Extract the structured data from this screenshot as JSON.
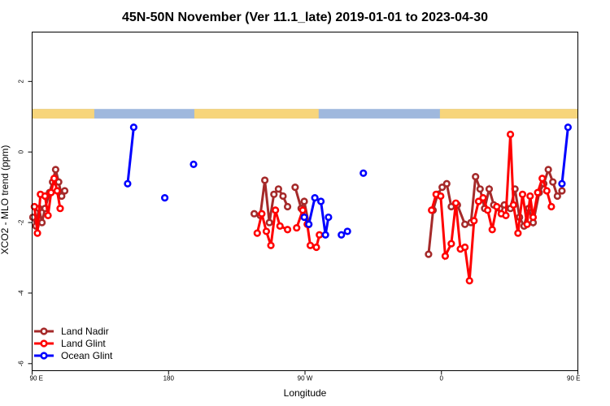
{
  "chart_data": {
    "type": "line",
    "title": "45N-50N November (Ver 11.1_late)   2019-01-01 to 2023-04-30",
    "xlabel": "Longitude",
    "ylabel": "XCO2 - MLO trend (ppm)",
    "xlim": [
      90,
      450
    ],
    "ylim": [
      -6.2,
      3.4
    ],
    "x_ticks": [
      {
        "value": 90,
        "label": "90 E"
      },
      {
        "value": 180,
        "label": "180"
      },
      {
        "value": 270,
        "label": "90 W"
      },
      {
        "value": 360,
        "label": "0"
      },
      {
        "value": 450,
        "label": "90 E"
      },
      {
        "value": 540,
        "label": "180"
      }
    ],
    "y_ticks": [
      {
        "value": 2,
        "label": "2"
      },
      {
        "value": 0,
        "label": "0"
      },
      {
        "value": -2,
        "label": "-2"
      },
      {
        "value": -4,
        "label": "-4"
      },
      {
        "value": -6,
        "label": "-6"
      }
    ],
    "grid": false,
    "legend_position": "bottom-left",
    "land_band": {
      "y_range": [
        0.95,
        1.22
      ],
      "ocean_color": "#9fb8dd",
      "land_color": "#f7d57b",
      "land_segments": [
        [
          90,
          131
        ],
        [
          197,
          279
        ],
        [
          359,
          486
        ],
        [
          531,
          547
        ],
        [
          577,
          577
        ]
      ]
    },
    "series": [
      {
        "name": "Land Nadir",
        "color": "#a52a2a",
        "segments": [
          [
            [
              90.5,
              -1.85
            ],
            [
              92.5,
              -2.1
            ],
            [
              94.5,
              -1.6
            ],
            [
              96.5,
              -2.0
            ],
            [
              98.5,
              -1.6
            ],
            [
              101.5,
              -1.15
            ],
            [
              103.5,
              -0.85
            ],
            [
              105.5,
              -0.5
            ],
            [
              107.5,
              -0.85
            ],
            [
              109.5,
              -1.25
            ],
            [
              111.5,
              -1.1
            ]
          ],
          [
            [
              236.5,
              -1.75
            ],
            [
              240.5,
              -1.8
            ],
            [
              243.5,
              -0.8
            ],
            [
              246.5,
              -2.0
            ],
            [
              249.5,
              -1.2
            ],
            [
              252.5,
              -1.05
            ],
            [
              255.5,
              -1.25
            ],
            [
              258.5,
              -1.55
            ]
          ],
          [
            [
              263.5,
              -1.0
            ],
            [
              267.5,
              -1.6
            ],
            [
              269.5,
              -1.4
            ],
            [
              272.5,
              -2.05
            ]
          ],
          [
            [
              351.5,
              -2.9
            ],
            [
              354.5,
              -1.65
            ],
            [
              357.5,
              -1.2
            ],
            [
              360.5,
              -1.0
            ],
            [
              363.5,
              -0.9
            ],
            [
              366.5,
              -1.55
            ],
            [
              370.5,
              -1.5
            ],
            [
              375.5,
              -2.05
            ],
            [
              379.5,
              -2.0
            ],
            [
              382.5,
              -0.7
            ],
            [
              385.5,
              -1.05
            ],
            [
              388.5,
              -1.6
            ],
            [
              391.5,
              -1.05
            ],
            [
              394.5,
              -1.5
            ],
            [
              398.5,
              -1.6
            ],
            [
              401.5,
              -1.5
            ],
            [
              405.5,
              -1.6
            ],
            [
              408.5,
              -1.05
            ],
            [
              411.5,
              -1.85
            ],
            [
              414.5,
              -2.1
            ],
            [
              417.5,
              -1.6
            ],
            [
              420.5,
              -2.0
            ],
            [
              424.5,
              -1.15
            ],
            [
              427.5,
              -0.9
            ],
            [
              430.5,
              -0.5
            ],
            [
              433.5,
              -0.85
            ],
            [
              436.5,
              -1.25
            ],
            [
              439.5,
              -1.1
            ]
          ]
        ]
      },
      {
        "name": "Land Glint",
        "color": "#ff0000",
        "segments": [
          [
            [
              91.5,
              -1.55
            ],
            [
              93.5,
              -2.3
            ],
            [
              95.5,
              -1.2
            ],
            [
              98.5,
              -1.25
            ],
            [
              100.5,
              -1.8
            ],
            [
              102.5,
              -1.15
            ],
            [
              104.5,
              -0.75
            ],
            [
              106.5,
              -1.1
            ],
            [
              108.5,
              -1.6
            ]
          ],
          [
            [
              238.5,
              -2.3
            ],
            [
              241.5,
              -1.75
            ],
            [
              244.5,
              -2.25
            ],
            [
              247.5,
              -2.65
            ],
            [
              250.5,
              -1.65
            ],
            [
              253.5,
              -2.1
            ],
            [
              258.5,
              -2.2
            ]
          ],
          [
            [
              264.5,
              -2.15
            ],
            [
              268.5,
              -1.65
            ],
            [
              271.5,
              -2.05
            ],
            [
              273.5,
              -2.65
            ],
            [
              277.5,
              -2.7
            ],
            [
              279.5,
              -2.35
            ]
          ],
          [
            [
              353.5,
              -1.65
            ],
            [
              356.5,
              -1.2
            ],
            [
              359.5,
              -1.25
            ],
            [
              362.5,
              -2.95
            ],
            [
              366.5,
              -2.6
            ],
            [
              369.5,
              -1.45
            ],
            [
              372.5,
              -2.75
            ],
            [
              375.5,
              -2.7
            ],
            [
              378.5,
              -3.65
            ],
            [
              381.5,
              -1.95
            ],
            [
              384.5,
              -1.4
            ],
            [
              387.5,
              -1.3
            ],
            [
              390.5,
              -1.65
            ],
            [
              393.5,
              -2.2
            ],
            [
              396.5,
              -1.55
            ],
            [
              399.5,
              -1.75
            ],
            [
              402.5,
              -1.8
            ],
            [
              405.5,
              0.5
            ],
            [
              407.5,
              -1.5
            ],
            [
              410.5,
              -2.3
            ],
            [
              413.5,
              -1.2
            ],
            [
              416.5,
              -2.05
            ],
            [
              418.5,
              -1.25
            ],
            [
              420.5,
              -1.85
            ],
            [
              423.5,
              -1.15
            ],
            [
              426.5,
              -0.75
            ],
            [
              429.5,
              -1.1
            ],
            [
              432.5,
              -1.55
            ]
          ]
        ]
      },
      {
        "name": "Ocean Glint",
        "color": "#0000ff",
        "segments": [
          [
            [
              153,
              -0.9
            ],
            [
              157,
              0.7
            ]
          ],
          [
            [
              177.5,
              -1.3
            ]
          ],
          [
            [
              196.5,
              -0.35
            ]
          ],
          [
            [
              269.5,
              -1.85
            ],
            [
              272.5,
              -2.05
            ],
            [
              276.5,
              -1.3
            ],
            [
              280.5,
              -1.4
            ],
            [
              283.5,
              -2.35
            ],
            [
              285.5,
              -1.85
            ]
          ],
          [
            [
              294,
              -2.35
            ],
            [
              298,
              -2.25
            ]
          ],
          [
            [
              308.5,
              -0.6
            ]
          ],
          [
            [
              439.5,
              -0.9
            ],
            [
              443.5,
              0.7
            ]
          ]
        ]
      }
    ]
  }
}
